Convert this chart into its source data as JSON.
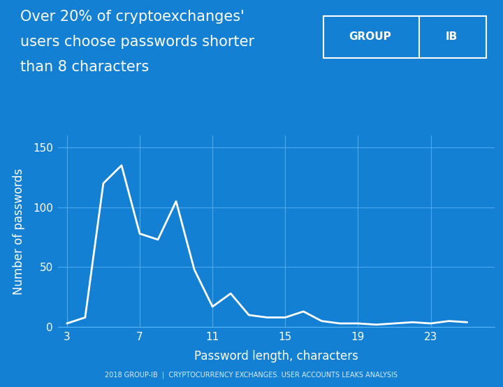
{
  "title_line1": "Over 20% of cryptoexchanges'",
  "title_line2": "users choose passwords shorter",
  "title_line3": "than 8 characters",
  "xlabel": "Password length, characters",
  "ylabel": "Number of passwords",
  "footnote": "2018 GROUP-IB  |  CRYPTOCURRENCY EXCHANGES. USER ACCOUNTS LEAKS ANALYSIS",
  "background_color": "#1480D4",
  "line_color": "#FFFFFF",
  "grid_color": "#5AB5F5",
  "text_color": "#FFFFFF",
  "x_data": [
    3,
    4,
    5,
    6,
    7,
    8,
    9,
    10,
    11,
    12,
    13,
    14,
    15,
    16,
    17,
    18,
    19,
    20,
    21,
    22,
    23,
    24,
    25
  ],
  "y_data": [
    3,
    8,
    120,
    135,
    78,
    73,
    105,
    48,
    17,
    28,
    10,
    8,
    8,
    13,
    5,
    3,
    3,
    2,
    3,
    4,
    3,
    5,
    4
  ],
  "yticks": [
    0,
    50,
    100,
    150
  ],
  "xticks": [
    3,
    7,
    11,
    15,
    19,
    23
  ],
  "ylim": [
    0,
    160
  ],
  "xlim": [
    2.5,
    26.5
  ],
  "title_fontsize": 15,
  "tick_fontsize": 11,
  "axis_label_fontsize": 12
}
